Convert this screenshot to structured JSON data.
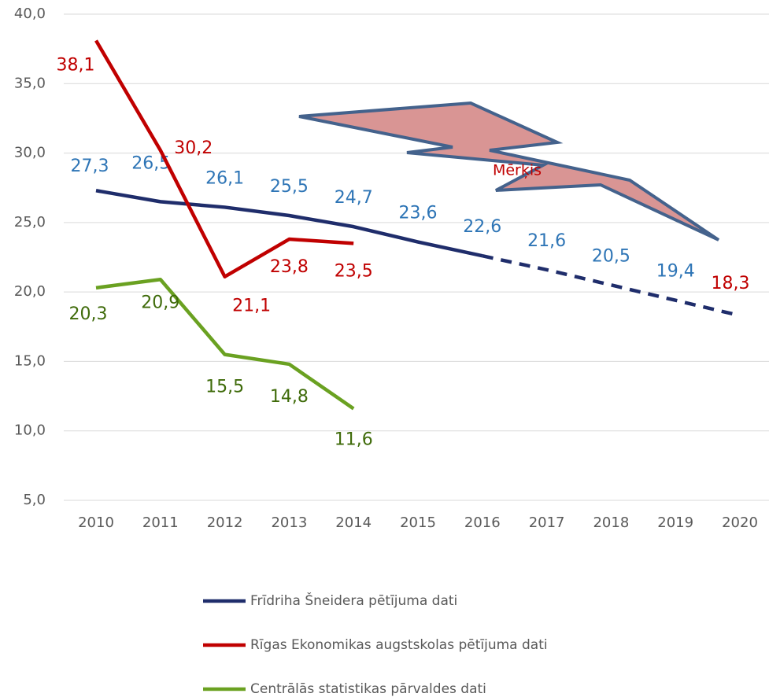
{
  "chart_data": {
    "type": "line",
    "categories": [
      "2010",
      "2011",
      "2012",
      "2013",
      "2014",
      "2015",
      "2016",
      "2017",
      "2018",
      "2019",
      "2020"
    ],
    "series": [
      {
        "name": "Frīdriha Šneidera pētījuma dati",
        "color": "#1f2d6b",
        "label_color": "#2e75b6",
        "projection_start": "2016",
        "values": [
          27.3,
          26.5,
          26.1,
          25.5,
          24.7,
          23.6,
          22.6,
          21.6,
          20.5,
          19.4,
          18.3
        ],
        "value_labels": [
          "27,3",
          "26,5",
          "26,1",
          "25,5",
          "24,7",
          "23,6",
          "22,6",
          "21,6",
          "20,5",
          "19,4",
          "18,3"
        ]
      },
      {
        "name": "Rīgas Ekonomikas augstskolas pētījuma dati",
        "color": "#c00000",
        "label_color": "#c00000",
        "values": [
          38.1,
          30.2,
          21.1,
          23.8,
          23.5,
          null,
          null,
          null,
          null,
          null,
          null
        ],
        "value_labels": [
          "38,1",
          "30,2",
          "21,1",
          "23,8",
          "23,5",
          null,
          null,
          null,
          null,
          null,
          null
        ]
      },
      {
        "name": "Centrālās statistikas pārvaldes dati",
        "color": "#6aa121",
        "label_color": "#3f6b0a",
        "values": [
          20.3,
          20.9,
          15.5,
          14.8,
          11.6,
          null,
          null,
          null,
          null,
          null,
          null
        ],
        "value_labels": [
          "20,3",
          "20,9",
          "15,5",
          "14,8",
          "11,6",
          null,
          null,
          null,
          null,
          null,
          null
        ]
      }
    ],
    "ylim": [
      5,
      40
    ],
    "yticks": [
      {
        "value": 5,
        "label": "5,0"
      },
      {
        "value": 10,
        "label": "10,0"
      },
      {
        "value": 15,
        "label": "15,0"
      },
      {
        "value": 20,
        "label": "20,0"
      },
      {
        "value": 25,
        "label": "25,0"
      },
      {
        "value": 30,
        "label": "30,0"
      },
      {
        "value": 35,
        "label": "35,0"
      },
      {
        "value": 40,
        "label": "40,0"
      }
    ],
    "grid": true,
    "annotation": "Mērķis"
  }
}
